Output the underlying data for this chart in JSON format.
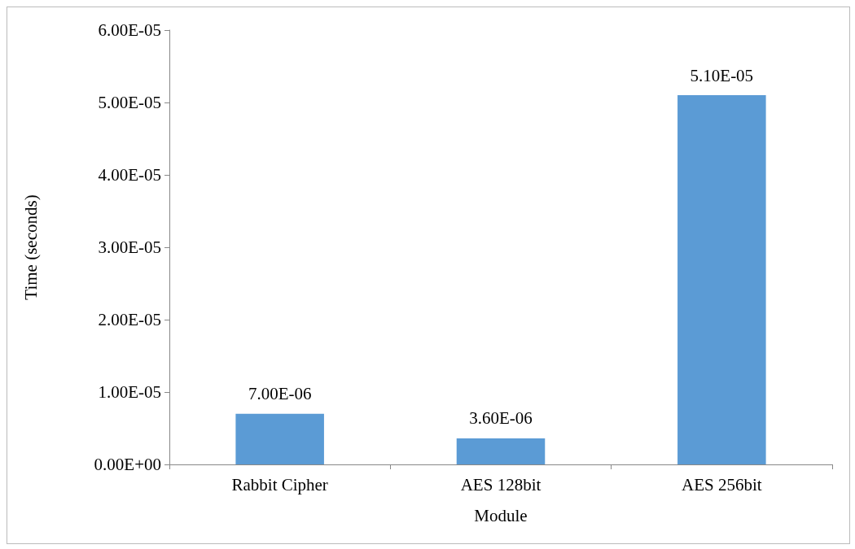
{
  "chart_data": {
    "type": "bar",
    "xlabel": "Module",
    "ylabel": "Time (seconds)",
    "categories": [
      "Rabbit Cipher",
      "AES 128bit",
      "AES 256bit"
    ],
    "values": [
      7e-06,
      3.6e-06,
      5.1e-05
    ],
    "value_labels": [
      "7.00E-06",
      "3.60E-06",
      "5.10E-05"
    ],
    "color": "#5b9bd5",
    "ylim": [
      0,
      6e-05
    ],
    "yticks": [
      {
        "value": 0,
        "label": "0.00E+00"
      },
      {
        "value": 1e-05,
        "label": "1.00E-05"
      },
      {
        "value": 2e-05,
        "label": "2.00E-05"
      },
      {
        "value": 3e-05,
        "label": "3.00E-05"
      },
      {
        "value": 4e-05,
        "label": "4.00E-05"
      },
      {
        "value": 5e-05,
        "label": "5.00E-05"
      },
      {
        "value": 6e-05,
        "label": "6.00E-05"
      }
    ],
    "grid": false
  }
}
